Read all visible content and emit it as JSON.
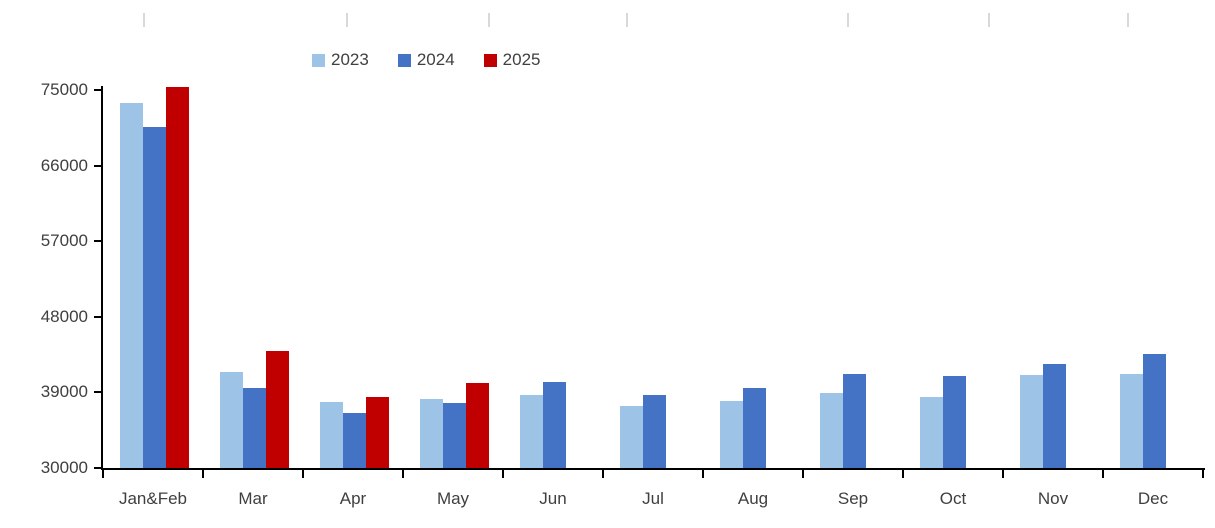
{
  "chart_data": {
    "type": "bar",
    "title": "",
    "xlabel": "",
    "ylabel": "",
    "categories": [
      "Jan&Feb",
      "Mar",
      "Apr",
      "May",
      "Jun",
      "Jul",
      "Aug",
      "Sep",
      "Oct",
      "Nov",
      "Dec"
    ],
    "series": [
      {
        "name": "2023",
        "color": "#9DC3E6",
        "values": [
          73400,
          41400,
          37900,
          38200,
          38700,
          37400,
          38000,
          38900,
          38400,
          41100,
          41200
        ]
      },
      {
        "name": "2024",
        "color": "#4472C4",
        "values": [
          70600,
          39500,
          36500,
          37700,
          40200,
          38700,
          39500,
          41200,
          40900,
          42400,
          43600
        ]
      },
      {
        "name": "2025",
        "color": "#C00000",
        "values": [
          75300,
          43900,
          38500,
          40100,
          null,
          null,
          null,
          null,
          null,
          null,
          null
        ]
      }
    ],
    "y_ticks": [
      30000,
      39000,
      48000,
      57000,
      66000,
      75000
    ],
    "ylim": [
      30000,
      75000
    ],
    "grid": false,
    "legend_position": "top-left-of-center",
    "axis_color": "#000000",
    "label_color": "#3f3f3f",
    "top_decoration_tick_color": "#D9D9D9"
  }
}
